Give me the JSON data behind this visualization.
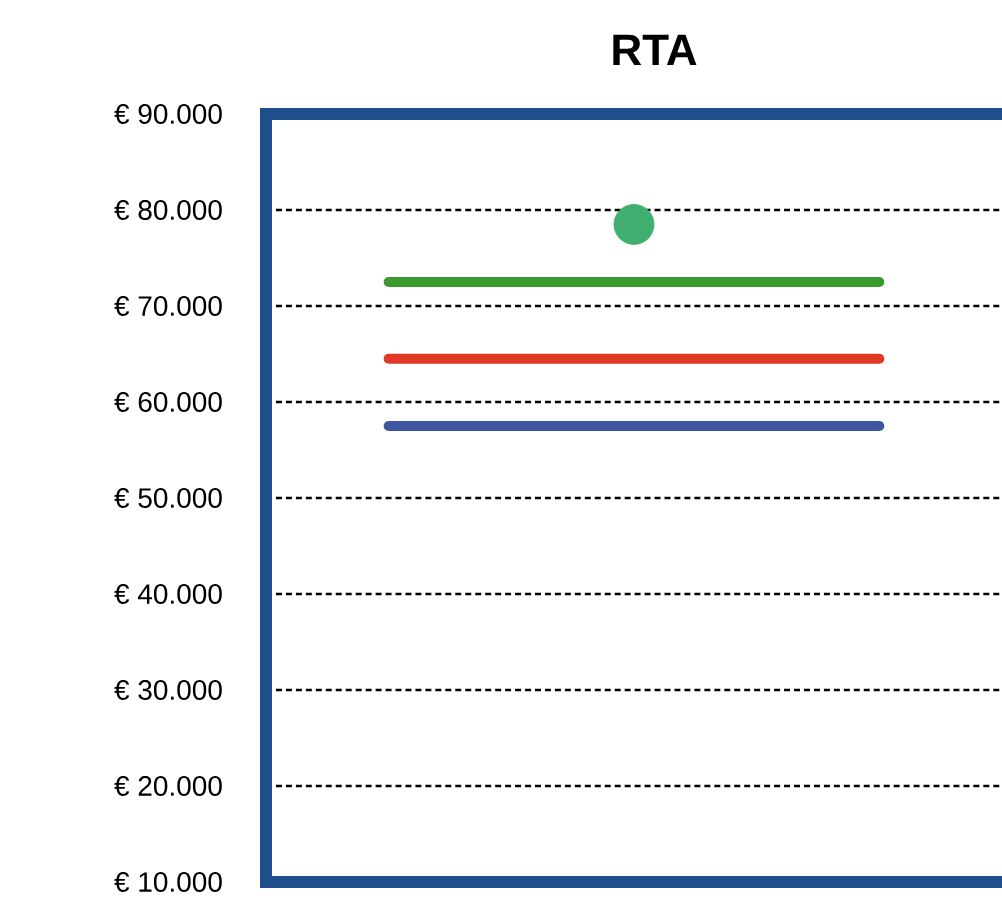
{
  "chart_data": {
    "type": "line",
    "title": "RTA",
    "categories": [
      null,
      null,
      null
    ],
    "series": [
      {
        "color": "#3f56a0",
        "values": [
          57500,
          57500,
          57500
        ]
      },
      {
        "color": "#e03a26",
        "values": [
          64500,
          64500,
          64500
        ]
      },
      {
        "color": "#3a9a2e",
        "values": [
          72500,
          72500,
          72500
        ]
      },
      {
        "type": "scatter",
        "color": "#3fae6e",
        "marker": "circle",
        "values": [
          null,
          78500,
          null
        ]
      }
    ],
    "ylim": [
      10000,
      90000
    ],
    "yticks": [
      {
        "value": 10000,
        "label": "€ 10.000"
      },
      {
        "value": 20000,
        "label": "€ 20.000"
      },
      {
        "value": 30000,
        "label": "€ 30.000"
      },
      {
        "value": 40000,
        "label": "€ 40.000"
      },
      {
        "value": 50000,
        "label": "€ 50.000"
      },
      {
        "value": 60000,
        "label": "€ 60.000"
      },
      {
        "value": 70000,
        "label": "€ 70.000"
      },
      {
        "value": 80000,
        "label": "€ 80.000"
      },
      {
        "value": 90000,
        "label": "€ 90.000"
      }
    ],
    "grid": "y",
    "tick_labels": "y"
  }
}
